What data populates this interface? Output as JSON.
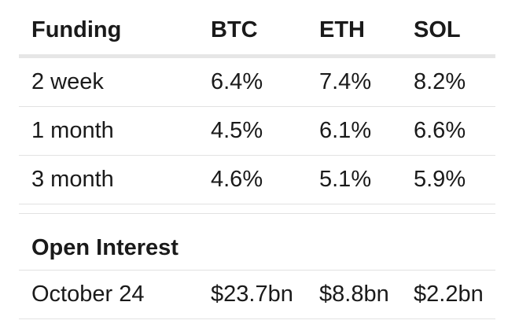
{
  "funding": {
    "header": [
      "Funding",
      "BTC",
      "ETH",
      "SOL"
    ],
    "rows": [
      [
        "2 week",
        "6.4%",
        "7.4%",
        "8.2%"
      ],
      [
        "1 month",
        "4.5%",
        "6.1%",
        "6.6%"
      ],
      [
        "3 month",
        "4.6%",
        "5.1%",
        "5.9%"
      ]
    ]
  },
  "open_interest": {
    "title": "Open Interest",
    "rows": [
      [
        "October 24",
        "$23.7bn",
        "$8.8bn",
        "$2.2bn"
      ]
    ]
  }
}
